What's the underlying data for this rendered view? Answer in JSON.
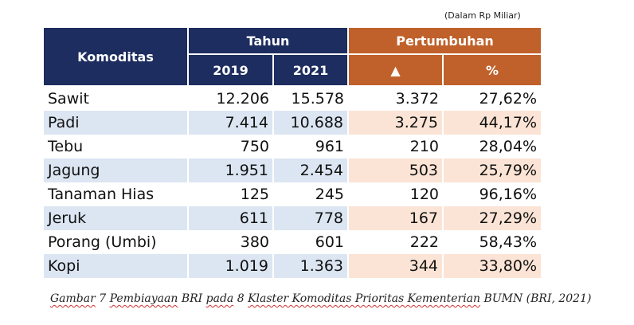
{
  "unit_note": "(Dalam Rp Miliar)",
  "headers": {
    "commodity": "Komoditas",
    "year_group": "Tahun",
    "growth_group": "Pertumbuhan",
    "year_2019": "2019",
    "year_2021": "2021",
    "delta": "▲",
    "percent": "%"
  },
  "rows": [
    {
      "name": "Sawit",
      "y2019": "12.206",
      "y2021": "15.578",
      "delta": "3.372",
      "pct": "27,62%"
    },
    {
      "name": "Padi",
      "y2019": "7.414",
      "y2021": "10.688",
      "delta": "3.275",
      "pct": "44,17%"
    },
    {
      "name": "Tebu",
      "y2019": "750",
      "y2021": "961",
      "delta": "210",
      "pct": "28,04%"
    },
    {
      "name": "Jagung",
      "y2019": "1.951",
      "y2021": "2.454",
      "delta": "503",
      "pct": "25,79%"
    },
    {
      "name": "Tanaman Hias",
      "y2019": "125",
      "y2021": "245",
      "delta": "120",
      "pct": "96,16%"
    },
    {
      "name": "Jeruk",
      "y2019": "611",
      "y2021": "778",
      "delta": "167",
      "pct": "27,29%"
    },
    {
      "name": "Porang (Umbi)",
      "y2019": "380",
      "y2021": "601",
      "delta": "222",
      "pct": "58,43%"
    },
    {
      "name": "Kopi",
      "y2019": "1.019",
      "y2021": "1.363",
      "delta": "344",
      "pct": "33,80%"
    }
  ],
  "caption": {
    "w1": "Gambar",
    "w2": " 7 ",
    "w3": "Pembiayaan",
    "w4": " BRI ",
    "w5": "pada",
    "w6": " 8 ",
    "w7": "Klaster Komoditas Prioritas Kementerian",
    "w8": " BUMN (BRI, 2021)"
  },
  "colors": {
    "header_navy": "#1e2d5f",
    "header_orange": "#c0612b",
    "stripe_blue": "#dce6f2",
    "stripe_peach": "#fbe4d5"
  }
}
